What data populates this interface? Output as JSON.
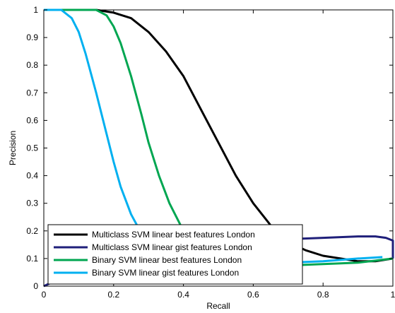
{
  "chart_data": {
    "type": "line",
    "title": "",
    "xlabel": "Recall",
    "ylabel": "Precision",
    "xlim": [
      0,
      1
    ],
    "ylim": [
      0,
      1
    ],
    "xticks": [
      "0",
      "0.2",
      "0.4",
      "0.6",
      "0.8",
      "1"
    ],
    "yticks": [
      "0",
      "0.1",
      "0.2",
      "0.3",
      "0.4",
      "0.5",
      "0.6",
      "0.7",
      "0.8",
      "0.9",
      "1"
    ],
    "grid": false,
    "legend_position": "bottom-left",
    "series": [
      {
        "name": "Multiclass SVM linear best features London",
        "color": "#000000",
        "points": [
          [
            0.0,
            1.0
          ],
          [
            0.15,
            1.0
          ],
          [
            0.2,
            0.99
          ],
          [
            0.25,
            0.97
          ],
          [
            0.3,
            0.92
          ],
          [
            0.35,
            0.85
          ],
          [
            0.4,
            0.76
          ],
          [
            0.45,
            0.64
          ],
          [
            0.5,
            0.52
          ],
          [
            0.55,
            0.4
          ],
          [
            0.6,
            0.3
          ],
          [
            0.65,
            0.22
          ],
          [
            0.7,
            0.16
          ],
          [
            0.75,
            0.13
          ],
          [
            0.8,
            0.11
          ],
          [
            0.85,
            0.1
          ],
          [
            0.9,
            0.09
          ],
          [
            0.95,
            0.09
          ],
          [
            1.0,
            0.1
          ]
        ]
      },
      {
        "name": "Multiclass SVM linear gist features London",
        "color": "#1f1f7a",
        "points": [
          [
            0.0,
            0.0
          ],
          [
            0.05,
            0.03
          ],
          [
            0.1,
            0.06
          ],
          [
            0.2,
            0.1
          ],
          [
            0.3,
            0.12
          ],
          [
            0.4,
            0.14
          ],
          [
            0.5,
            0.15
          ],
          [
            0.6,
            0.16
          ],
          [
            0.7,
            0.17
          ],
          [
            0.8,
            0.175
          ],
          [
            0.9,
            0.18
          ],
          [
            0.95,
            0.18
          ],
          [
            0.98,
            0.175
          ],
          [
            1.0,
            0.165
          ],
          [
            1.0,
            0.1
          ]
        ]
      },
      {
        "name": "Binary SVM linear best features London",
        "color": "#00a651",
        "points": [
          [
            0.0,
            1.0
          ],
          [
            0.15,
            1.0
          ],
          [
            0.18,
            0.98
          ],
          [
            0.2,
            0.94
          ],
          [
            0.22,
            0.88
          ],
          [
            0.25,
            0.76
          ],
          [
            0.28,
            0.62
          ],
          [
            0.3,
            0.52
          ],
          [
            0.33,
            0.4
          ],
          [
            0.36,
            0.3
          ],
          [
            0.4,
            0.2
          ],
          [
            0.45,
            0.14
          ],
          [
            0.5,
            0.1
          ],
          [
            0.6,
            0.08
          ],
          [
            0.7,
            0.075
          ],
          [
            0.8,
            0.08
          ],
          [
            0.9,
            0.085
          ],
          [
            1.0,
            0.1
          ]
        ]
      },
      {
        "name": "Binary SVM linear gist features London",
        "color": "#00b0f0",
        "points": [
          [
            0.0,
            1.0
          ],
          [
            0.05,
            1.0
          ],
          [
            0.08,
            0.97
          ],
          [
            0.1,
            0.92
          ],
          [
            0.12,
            0.84
          ],
          [
            0.15,
            0.7
          ],
          [
            0.18,
            0.55
          ],
          [
            0.2,
            0.45
          ],
          [
            0.22,
            0.36
          ],
          [
            0.25,
            0.26
          ],
          [
            0.28,
            0.19
          ],
          [
            0.3,
            0.15
          ],
          [
            0.35,
            0.11
          ],
          [
            0.4,
            0.09
          ],
          [
            0.5,
            0.08
          ],
          [
            0.6,
            0.08
          ],
          [
            0.7,
            0.085
          ],
          [
            0.8,
            0.09
          ],
          [
            0.9,
            0.1
          ],
          [
            0.97,
            0.105
          ]
        ]
      }
    ]
  }
}
